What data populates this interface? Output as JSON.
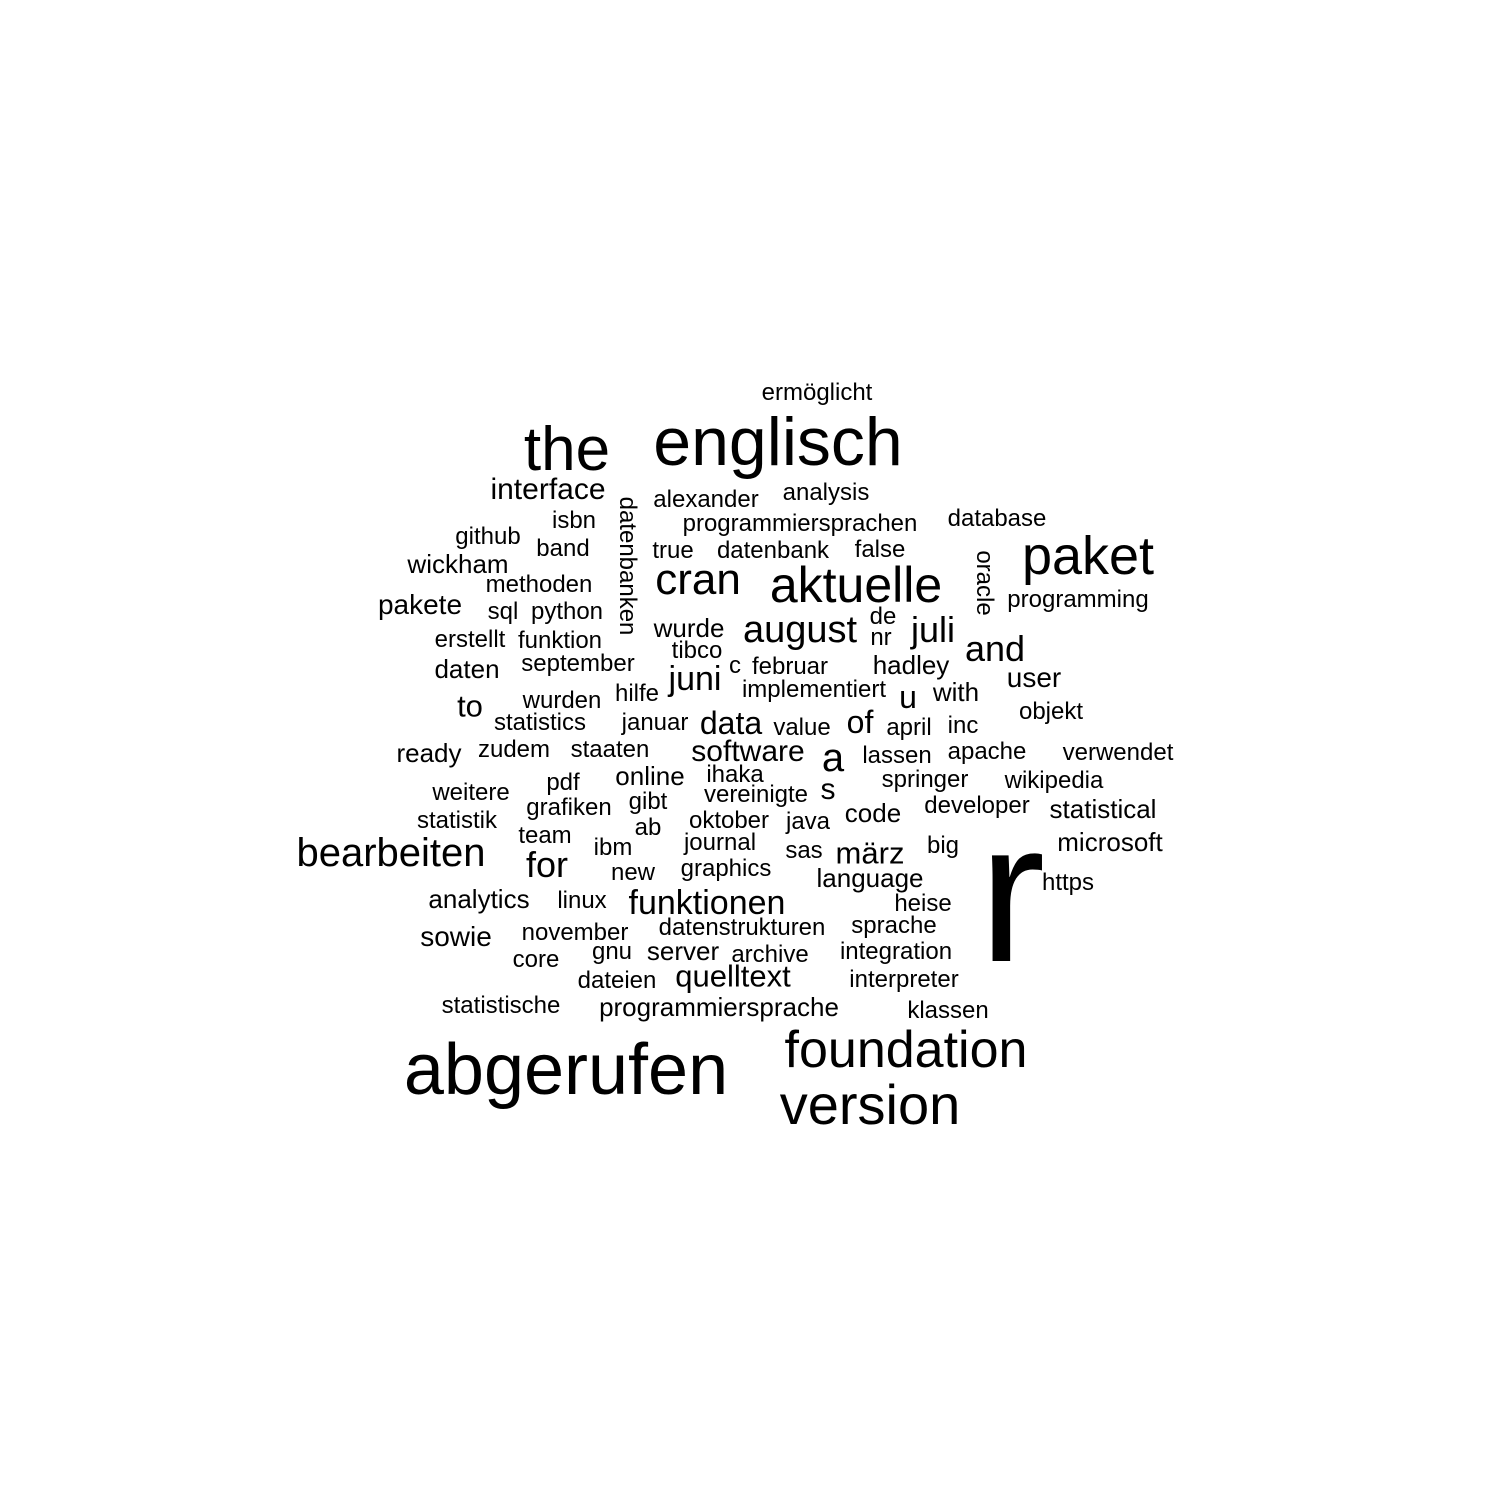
{
  "words": [
    "r",
    "abgerufen",
    "englisch",
    "version",
    "foundation",
    "the",
    "paket",
    "aktuelle",
    "cran",
    "bearbeiten",
    "august",
    "funktionen",
    "juli",
    "and",
    "juni",
    "for",
    "interface",
    "quelltext",
    "data",
    "software",
    "a",
    "märz",
    "of",
    "u",
    "s",
    "to",
    "ermöglicht",
    "alexander",
    "analysis",
    "programmiersprachen",
    "database",
    "isbn",
    "github",
    "band",
    "datenbanken",
    "true",
    "datenbank",
    "false",
    "oracle",
    "wickham",
    "methoden",
    "programming",
    "pakete",
    "sql",
    "python",
    "de",
    "wurde",
    "nr",
    "erstellt",
    "funktion",
    "tibco",
    "daten",
    "september",
    "februar",
    "hadley",
    "c",
    "user",
    "hilfe",
    "implementiert",
    "with",
    "wurden",
    "statistics",
    "januar",
    "value",
    "april",
    "inc",
    "objekt",
    "ready",
    "zudem",
    "staaten",
    "lassen",
    "apache",
    "verwendet",
    "online",
    "ihaka",
    "springer",
    "wikipedia",
    "weitere",
    "pdf",
    "vereinigte",
    "grafiken",
    "gibt",
    "developer",
    "statistical",
    "code",
    "statistik",
    "team",
    "ab",
    "oktober",
    "java",
    "microsoft",
    "ibm",
    "journal",
    "sas",
    "big",
    "new",
    "graphics",
    "language",
    "https",
    "analytics",
    "linux",
    "heise",
    "sowie",
    "november",
    "datenstrukturen",
    "sprache",
    "gnu",
    "server",
    "archive",
    "integration",
    "core",
    "dateien",
    "interpreter",
    "statistische",
    "programmiersprache",
    "klassen"
  ]
}
